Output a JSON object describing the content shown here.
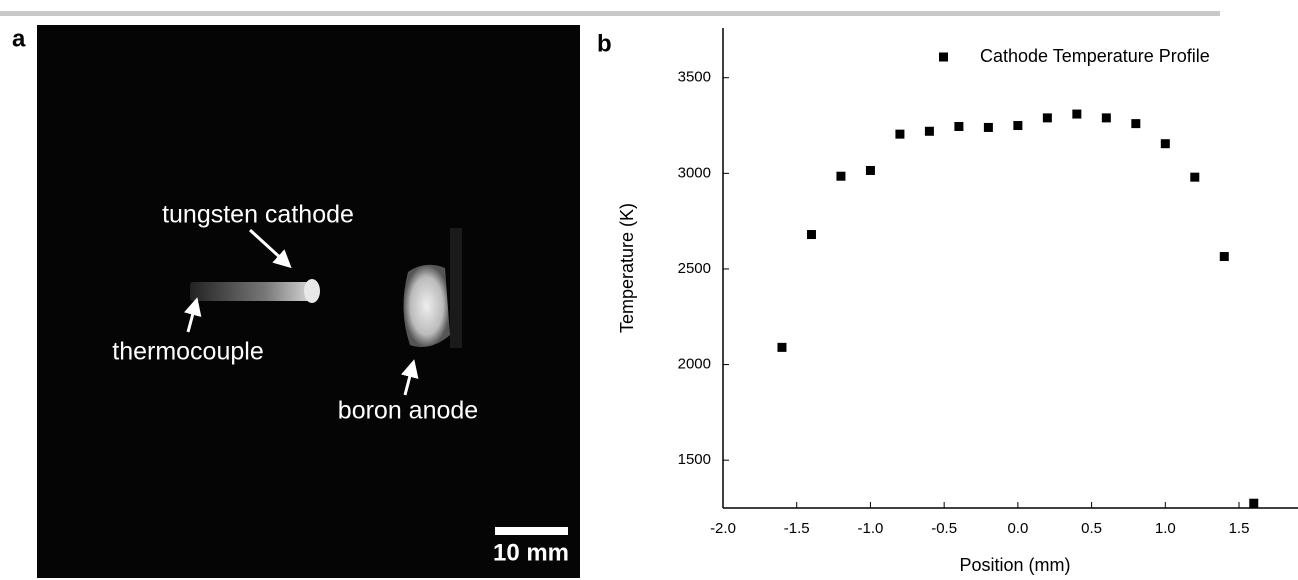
{
  "panel_a": {
    "label": "a",
    "annotations": [
      "tungsten cathode",
      "thermocouple",
      "boron anode"
    ],
    "scale_bar": "10 mm"
  },
  "panel_b_label": "b",
  "chart_data": {
    "type": "scatter",
    "x_label": "Position (mm)",
    "y_label": "Temperature (K)",
    "series": [
      {
        "name": "Cathode Temperature Profile",
        "color": "#000000",
        "x": [
          -1.6,
          -1.4,
          -1.2,
          -1.0,
          -0.8,
          -0.6,
          -0.4,
          -0.2,
          0.0,
          0.2,
          0.4,
          0.6,
          0.8,
          1.0,
          1.2,
          1.4,
          1.6
        ],
        "values": [
          2090,
          2680,
          2985,
          3015,
          3205,
          3220,
          3245,
          3240,
          3250,
          3290,
          3310,
          3290,
          3260,
          3155,
          2980,
          2565,
          1275
        ]
      }
    ],
    "xlim": [
      -2.0,
      1.9
    ],
    "ylim": [
      1250,
      3760
    ],
    "xticks": [
      {
        "value": -2,
        "label": "-2.0"
      },
      -1.5,
      {
        "value": -1,
        "label": "-1.0"
      },
      -0.5,
      {
        "value": 0,
        "label": "0.0"
      },
      0.5,
      {
        "value": 1,
        "label": "1.0"
      },
      1.5
    ],
    "yticks": [
      1500,
      2000,
      2500,
      3000,
      3500
    ],
    "legend": "top-right",
    "grid": false
  }
}
